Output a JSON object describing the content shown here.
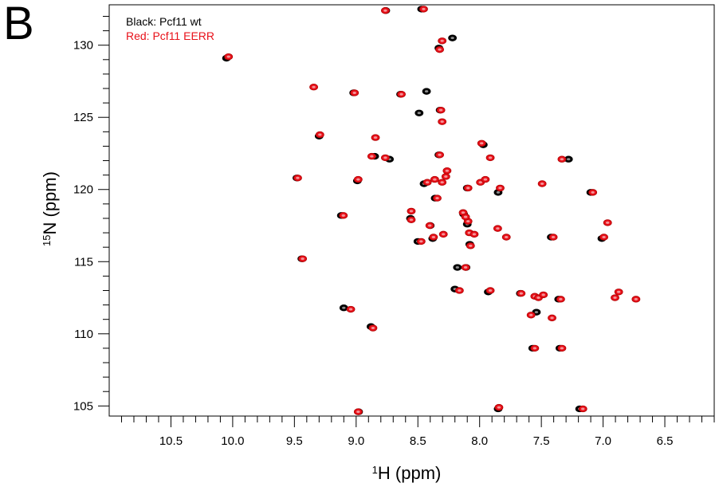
{
  "panel_label": "B",
  "chart_data": {
    "type": "scatter",
    "xlabel_sup": "1",
    "xlabel_main": "H (ppm)",
    "ylabel_sup": "15",
    "ylabel_main": "N (ppm)",
    "xlim": [
      11.0,
      6.1
    ],
    "ylim": [
      132.8,
      104.3
    ],
    "x_reversed": true,
    "y_reversed": true,
    "xticks": [
      "10.5",
      "10.0",
      "9.5",
      "9.0",
      "8.5",
      "8.0",
      "7.5",
      "7.0",
      "6.5"
    ],
    "xtick_values": [
      10.5,
      10.0,
      9.5,
      9.0,
      8.5,
      8.0,
      7.5,
      7.0,
      6.5
    ],
    "yticks": [
      "105",
      "110",
      "115",
      "120",
      "125",
      "130"
    ],
    "ytick_values": [
      105,
      110,
      115,
      120,
      125,
      130
    ],
    "grid": false,
    "legend_position": "top-left",
    "colors": {
      "wt": "#000000",
      "eerr": "#e8111a"
    },
    "series": [
      {
        "name": "Black: Pcf11 wt",
        "key": "wt",
        "points": [
          [
            8.98,
            104.6
          ],
          [
            7.85,
            104.8
          ],
          [
            7.19,
            104.8
          ],
          [
            7.57,
            109.0
          ],
          [
            7.35,
            109.0
          ],
          [
            8.88,
            110.5
          ],
          [
            9.1,
            111.8
          ],
          [
            7.54,
            111.5
          ],
          [
            8.2,
            113.1
          ],
          [
            7.93,
            112.9
          ],
          [
            7.36,
            112.4
          ],
          [
            7.67,
            112.8
          ],
          [
            8.18,
            114.6
          ],
          [
            8.11,
            114.6
          ],
          [
            9.44,
            115.2
          ],
          [
            8.08,
            116.2
          ],
          [
            8.5,
            116.4
          ],
          [
            8.38,
            116.6
          ],
          [
            7.42,
            116.7
          ],
          [
            7.01,
            116.6
          ],
          [
            8.1,
            117.6
          ],
          [
            8.4,
            117.5
          ],
          [
            8.56,
            118.0
          ],
          [
            8.13,
            118.3
          ],
          [
            9.12,
            118.2
          ],
          [
            7.85,
            119.8
          ],
          [
            8.36,
            119.4
          ],
          [
            8.45,
            120.4
          ],
          [
            8.1,
            120.1
          ],
          [
            7.1,
            119.8
          ],
          [
            9.48,
            120.8
          ],
          [
            8.99,
            120.6
          ],
          [
            8.73,
            122.1
          ],
          [
            8.85,
            122.3
          ],
          [
            7.28,
            122.1
          ],
          [
            9.3,
            123.7
          ],
          [
            8.49,
            125.3
          ],
          [
            9.02,
            126.7
          ],
          [
            8.64,
            126.6
          ],
          [
            8.43,
            126.8
          ],
          [
            10.05,
            129.1
          ],
          [
            8.33,
            129.8
          ],
          [
            8.22,
            130.5
          ],
          [
            8.76,
            132.4
          ],
          [
            8.47,
            132.5
          ],
          [
            7.97,
            123.1
          ],
          [
            8.33,
            122.4
          ],
          [
            8.32,
            125.5
          ]
        ]
      },
      {
        "name": "Red: Pcf11 EERR",
        "key": "eerr",
        "points": [
          [
            8.99,
            104.6
          ],
          [
            7.85,
            104.9
          ],
          [
            7.17,
            104.8
          ],
          [
            7.56,
            109.0
          ],
          [
            7.34,
            109.0
          ],
          [
            8.87,
            110.4
          ],
          [
            9.05,
            111.7
          ],
          [
            7.59,
            111.3
          ],
          [
            7.42,
            111.1
          ],
          [
            8.17,
            113.0
          ],
          [
            7.92,
            113.0
          ],
          [
            7.67,
            112.8
          ],
          [
            7.56,
            112.6
          ],
          [
            7.53,
            112.5
          ],
          [
            7.49,
            112.7
          ],
          [
            7.35,
            112.4
          ],
          [
            6.91,
            112.5
          ],
          [
            6.88,
            112.9
          ],
          [
            6.74,
            112.4
          ],
          [
            8.12,
            114.6
          ],
          [
            9.44,
            115.2
          ],
          [
            8.08,
            116.1
          ],
          [
            8.48,
            116.4
          ],
          [
            8.38,
            116.7
          ],
          [
            8.3,
            116.9
          ],
          [
            7.79,
            116.7
          ],
          [
            7.41,
            116.7
          ],
          [
            7.0,
            116.7
          ],
          [
            8.09,
            117.0
          ],
          [
            8.05,
            116.9
          ],
          [
            8.41,
            117.5
          ],
          [
            8.1,
            117.8
          ],
          [
            6.97,
            117.7
          ],
          [
            7.86,
            117.3
          ],
          [
            8.56,
            117.9
          ],
          [
            8.56,
            118.5
          ],
          [
            8.14,
            118.4
          ],
          [
            8.12,
            118.1
          ],
          [
            9.11,
            118.2
          ],
          [
            8.35,
            119.4
          ],
          [
            8.43,
            120.5
          ],
          [
            8.37,
            120.7
          ],
          [
            8.31,
            120.5
          ],
          [
            8.1,
            120.1
          ],
          [
            8.0,
            120.5
          ],
          [
            7.96,
            120.7
          ],
          [
            7.84,
            120.1
          ],
          [
            7.5,
            120.4
          ],
          [
            7.09,
            119.8
          ],
          [
            8.28,
            120.9
          ],
          [
            8.27,
            121.3
          ],
          [
            9.48,
            120.8
          ],
          [
            8.99,
            120.7
          ],
          [
            8.88,
            122.3
          ],
          [
            8.77,
            122.2
          ],
          [
            7.34,
            122.1
          ],
          [
            9.3,
            123.8
          ],
          [
            8.85,
            123.6
          ],
          [
            8.31,
            124.7
          ],
          [
            8.32,
            125.5
          ],
          [
            9.02,
            126.7
          ],
          [
            8.64,
            126.6
          ],
          [
            9.35,
            127.1
          ],
          [
            10.04,
            129.2
          ],
          [
            8.33,
            129.7
          ],
          [
            8.31,
            130.3
          ],
          [
            8.77,
            132.4
          ],
          [
            8.46,
            132.5
          ],
          [
            7.92,
            122.2
          ],
          [
            7.99,
            123.2
          ],
          [
            8.33,
            122.4
          ]
        ]
      }
    ]
  }
}
